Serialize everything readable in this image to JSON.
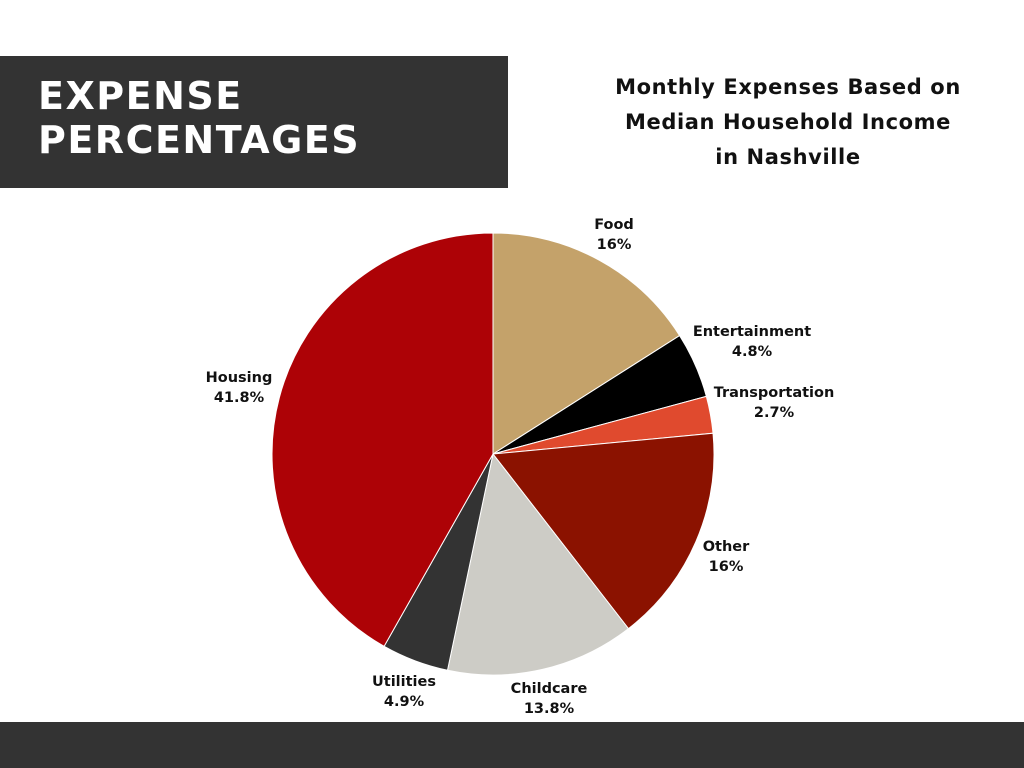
{
  "header": {
    "line1": "EXPENSE",
    "line2": "PERCENTAGES",
    "background": "#333333",
    "text_color": "#ffffff"
  },
  "chart_data": {
    "type": "pie",
    "title_lines": [
      "Monthly Expenses Based on",
      "Median Household Income",
      "in Nashville"
    ],
    "start_angle_deg": 0,
    "direction": "clockwise",
    "slices": [
      {
        "label": "Food",
        "value": 16,
        "display": "16%",
        "color": "#c4a26a"
      },
      {
        "label": "Entertainment",
        "value": 4.8,
        "display": "4.8%",
        "color": "#000000"
      },
      {
        "label": "Transportation",
        "value": 2.7,
        "display": "2.7%",
        "color": "#e04a2e"
      },
      {
        "label": "Other",
        "value": 16,
        "display": "16%",
        "color": "#8b1200"
      },
      {
        "label": "Childcare",
        "value": 13.8,
        "display": "13.8%",
        "color": "#cdccc6"
      },
      {
        "label": "Utilities",
        "value": 4.9,
        "display": "4.9%",
        "color": "#333333"
      },
      {
        "label": "Housing",
        "value": 41.8,
        "display": "41.8%",
        "color": "#ad0206"
      }
    ]
  },
  "footer": {
    "background": "#333333"
  }
}
